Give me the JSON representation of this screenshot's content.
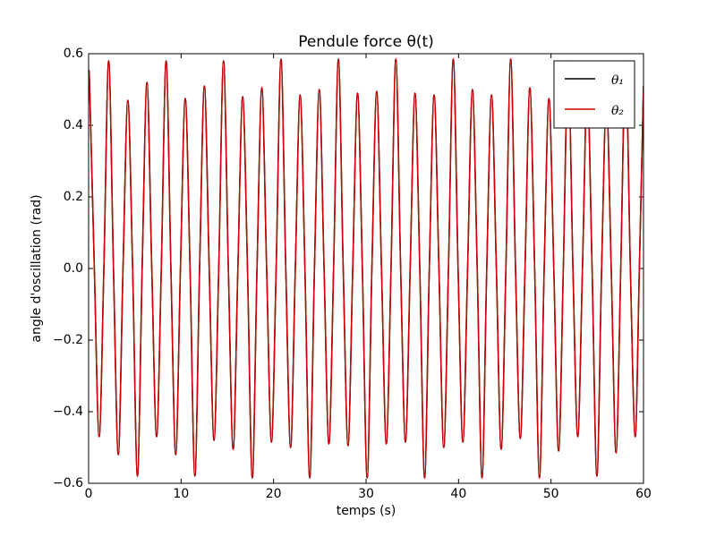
{
  "chart_data": {
    "type": "line",
    "title": "Pendule force θ(t)",
    "xlabel": "temps (s)",
    "ylabel": "angle d'oscillation (rad)",
    "x": [
      0,
      0.1,
      0.62,
      1.14,
      1.65,
      2.17,
      2.69,
      3.21,
      3.72,
      4.24,
      4.76,
      5.28,
      5.79,
      6.31,
      6.83,
      7.35,
      7.86,
      8.38,
      8.9,
      9.42,
      9.93,
      10.45,
      10.97,
      11.49,
      12.0,
      12.52,
      13.04,
      13.56,
      14.07,
      14.59,
      15.11,
      15.63,
      16.14,
      16.66,
      17.18,
      17.7,
      18.21,
      18.73,
      19.25,
      19.77,
      20.28,
      20.8,
      21.32,
      21.84,
      22.35,
      22.87,
      23.39,
      23.91,
      24.42,
      24.94,
      25.46,
      25.98,
      26.49,
      27.01,
      27.53,
      28.05,
      28.56,
      29.08,
      29.6,
      30.12,
      30.63,
      31.15,
      31.67,
      32.19,
      32.7,
      33.22,
      33.74,
      34.26,
      34.77,
      35.29,
      35.81,
      36.33,
      36.84,
      37.36,
      37.88,
      38.4,
      38.91,
      39.43,
      39.95,
      40.47,
      40.98,
      41.5,
      42.02,
      42.54,
      43.05,
      43.57,
      44.09,
      44.61,
      45.12,
      45.64,
      46.16,
      46.68,
      47.19,
      47.71,
      48.23,
      48.75,
      49.26,
      49.78,
      50.3,
      50.82,
      51.33,
      51.85,
      52.37,
      52.89,
      53.4,
      53.92,
      54.44,
      54.96,
      55.47,
      55.99,
      56.51,
      57.03,
      57.54,
      58.06,
      58.58,
      59.1,
      59.55,
      60
    ],
    "series": [
      {
        "name": "θ₁",
        "color": "#000000",
        "values": [
          0.5,
          0.52,
          0,
          -0.47,
          0,
          0.58,
          0,
          -0.52,
          0,
          0.47,
          0,
          -0.58,
          0,
          0.52,
          0,
          -0.47,
          0,
          0.58,
          0,
          -0.52,
          0,
          0.475,
          0,
          -0.58,
          0,
          0.51,
          0,
          -0.48,
          0,
          0.58,
          0,
          -0.505,
          0,
          0.48,
          0,
          -0.585,
          0,
          0.505,
          0,
          -0.485,
          0,
          0.585,
          0,
          -0.5,
          0,
          0.485,
          0,
          -0.585,
          0,
          0.5,
          0,
          -0.49,
          0,
          0.585,
          0,
          -0.495,
          0,
          0.49,
          0,
          -0.585,
          0,
          0.495,
          0,
          -0.49,
          0,
          0.585,
          0,
          -0.485,
          0,
          0.49,
          0,
          -0.585,
          0,
          0.485,
          0,
          -0.5,
          0,
          0.585,
          0,
          -0.485,
          0,
          0.5,
          0,
          -0.585,
          0,
          0.485,
          0,
          -0.505,
          0,
          0.585,
          0,
          -0.475,
          0,
          0.505,
          0,
          -0.585,
          0,
          0.475,
          0,
          -0.51,
          0,
          0.58,
          0,
          -0.47,
          0,
          0.51,
          0,
          -0.58,
          0,
          0.47,
          0,
          -0.515,
          0,
          0.58,
          0,
          -0.47,
          0,
          0.51
        ]
      },
      {
        "name": "θ₂",
        "color": "#cc0000",
        "values": [
          0.5,
          0.52,
          0,
          -0.47,
          0,
          0.58,
          0,
          -0.52,
          0,
          0.47,
          0,
          -0.58,
          0,
          0.52,
          0,
          -0.47,
          0,
          0.58,
          0,
          -0.52,
          0,
          0.475,
          0,
          -0.58,
          0,
          0.51,
          0,
          -0.48,
          0,
          0.58,
          0,
          -0.505,
          0,
          0.48,
          0,
          -0.585,
          0,
          0.505,
          0,
          -0.485,
          0,
          0.585,
          0,
          -0.5,
          0,
          0.485,
          0,
          -0.585,
          0,
          0.5,
          0,
          -0.49,
          0,
          0.585,
          0,
          -0.495,
          0,
          0.49,
          0,
          -0.585,
          0,
          0.495,
          0,
          -0.49,
          0,
          0.585,
          0,
          -0.485,
          0,
          0.49,
          0,
          -0.585,
          0,
          0.485,
          0,
          -0.5,
          0,
          0.585,
          0,
          -0.485,
          0,
          0.5,
          0,
          -0.585,
          0,
          0.485,
          0,
          -0.505,
          0,
          0.585,
          0,
          -0.475,
          0,
          0.505,
          0,
          -0.585,
          0,
          0.475,
          0,
          -0.51,
          0,
          0.58,
          0,
          -0.47,
          0,
          0.51,
          0,
          -0.58,
          0,
          0.47,
          0,
          -0.515,
          0,
          0.58,
          0,
          -0.47,
          0,
          0.51
        ]
      }
    ],
    "xlim": [
      0,
      60
    ],
    "xticks": [
      0,
      10,
      20,
      30,
      40,
      50,
      60
    ],
    "ylim": [
      -0.6,
      0.6
    ],
    "yticks": [
      {
        "value": -0.6,
        "label": "−0.6"
      },
      {
        "value": -0.4,
        "label": "−0.4"
      },
      {
        "value": -0.2,
        "label": "−0.2"
      },
      {
        "value": 0,
        "label": "0.0"
      },
      0.2,
      0.4,
      0.6
    ],
    "legend": "upper right"
  }
}
